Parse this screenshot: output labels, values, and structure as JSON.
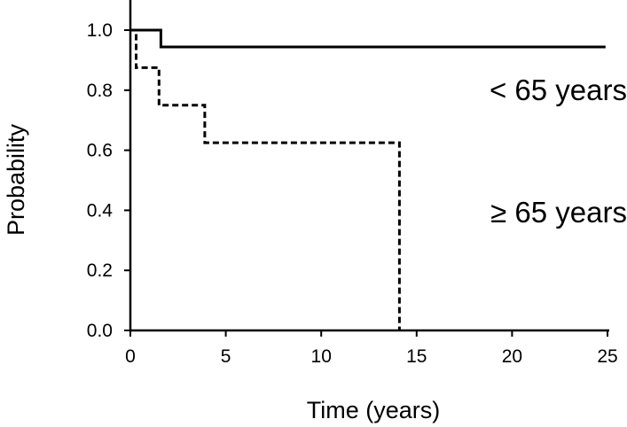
{
  "chart_data": {
    "type": "line",
    "title": "",
    "xlabel": "Time (years)",
    "ylabel": "Probability",
    "xlim": [
      0,
      25
    ],
    "ylim": [
      0,
      1.0
    ],
    "x_ticks": [
      "0",
      "5",
      "10",
      "15",
      "20",
      "25"
    ],
    "y_ticks": [
      "0.0",
      "0.2",
      "0.4",
      "0.6",
      "0.8",
      "1.0"
    ],
    "grid": false,
    "series": [
      {
        "name": "< 65 years",
        "line_style": "solid",
        "color": "#000000",
        "x": [
          0,
          1.6,
          1.6,
          24.9
        ],
        "y": [
          1.0,
          1.0,
          0.944,
          0.944
        ]
      },
      {
        "name": "≥ 65 years",
        "line_style": "dashed",
        "color": "#000000",
        "x": [
          0,
          0.3,
          0.3,
          1.5,
          1.5,
          3.9,
          3.9,
          14.1,
          14.1
        ],
        "y": [
          1.0,
          1.0,
          0.875,
          0.875,
          0.75,
          0.75,
          0.625,
          0.625,
          0.0
        ]
      }
    ]
  }
}
